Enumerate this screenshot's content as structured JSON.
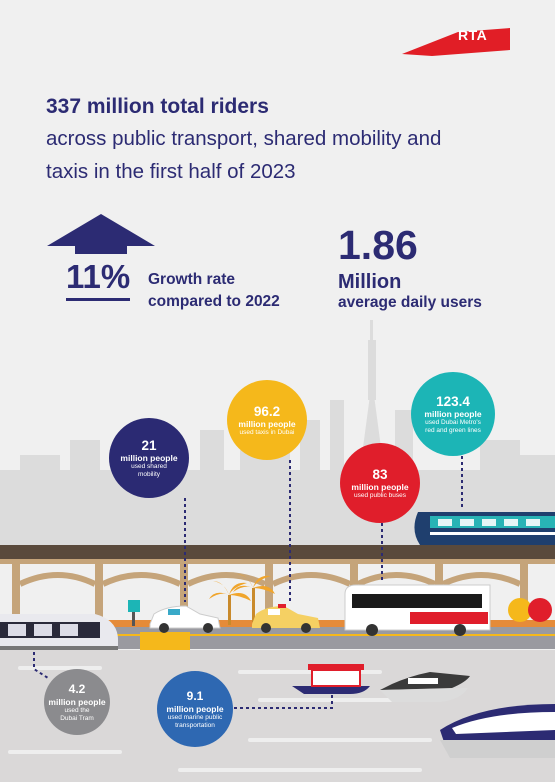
{
  "brand": {
    "logo_text": "RTA",
    "logo_color": "#e11e26"
  },
  "headline": {
    "title": "337 million total riders",
    "line1": "across public transport, shared mobility and",
    "line2": "taxis in the first half of 2023"
  },
  "growth": {
    "value": "11%",
    "label_line1": "Growth rate",
    "label_line2": "compared to 2022",
    "icon": "up-arrow-icon"
  },
  "daily": {
    "value": "1.86",
    "unit": "Million",
    "label": "average daily users"
  },
  "stats": {
    "shared": {
      "value": "21",
      "unit": "million people",
      "desc1": "used shared",
      "desc2": "mobility",
      "color": "#2b2a73"
    },
    "taxi": {
      "value": "96.2",
      "unit": "million people",
      "desc1": "used taxis in Dubai",
      "color": "#f5b81b"
    },
    "bus": {
      "value": "83",
      "unit": "million people",
      "desc1": "used public buses",
      "color": "#e01e2b"
    },
    "metro": {
      "value": "123.4",
      "unit": "million people",
      "desc1": "used Dubai Metro's",
      "desc2": "red and green lines",
      "color": "#1cb5b6"
    },
    "tram": {
      "value": "4.2",
      "unit": "million people",
      "desc1": "used the",
      "desc2": "Dubai Tram",
      "color": "#8b8b8e"
    },
    "marine": {
      "value": "9.1",
      "unit": "million people",
      "desc1": "used marine public",
      "desc2": "transportation",
      "color": "#2e68b2"
    }
  }
}
